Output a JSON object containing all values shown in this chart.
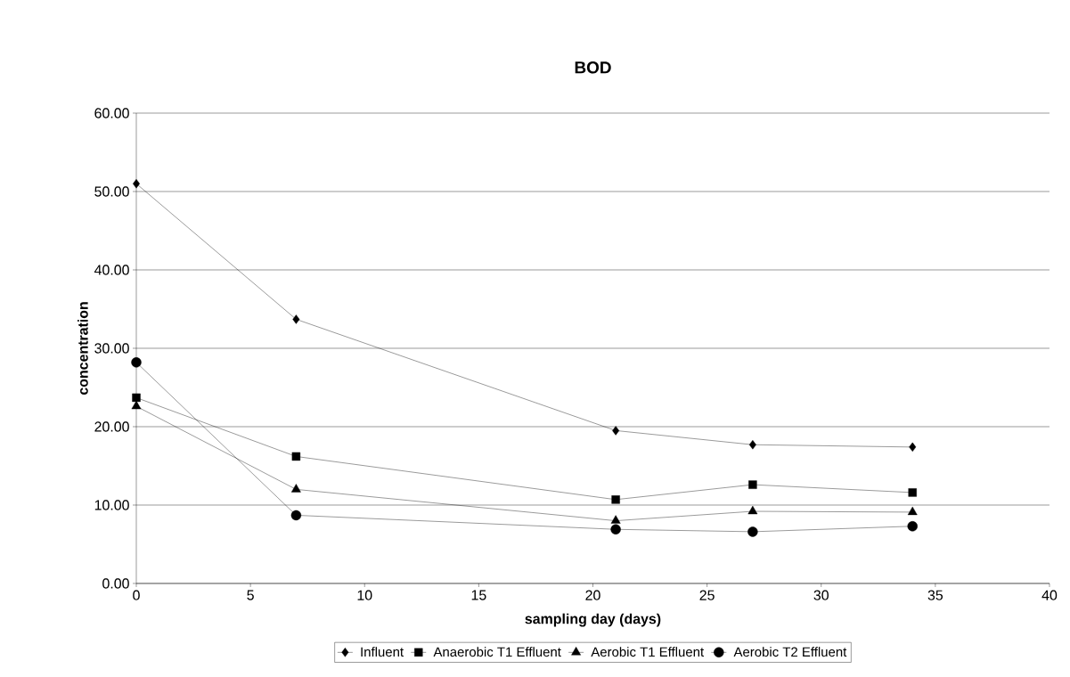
{
  "chart_data": {
    "type": "line",
    "title": "BOD",
    "xlabel": "sampling day (days)",
    "ylabel": "concentration",
    "x": [
      0,
      7,
      21,
      27,
      34
    ],
    "series": [
      {
        "name": "Influent",
        "color": "#000000",
        "marker": "diamond",
        "values": [
          51.0,
          33.7,
          19.5,
          17.7,
          17.4
        ]
      },
      {
        "name": "Anaerobic T1 Effluent",
        "color": "#000000",
        "marker": "square",
        "values": [
          23.7,
          16.2,
          10.7,
          12.6,
          11.6
        ]
      },
      {
        "name": "Aerobic T1 Effluent",
        "color": "#000000",
        "marker": "triangle",
        "values": [
          22.6,
          12.0,
          8.0,
          9.2,
          9.1
        ]
      },
      {
        "name": "Aerobic T2 Effluent",
        "color": "#000000",
        "marker": "circle",
        "values": [
          28.2,
          8.7,
          6.9,
          6.6,
          7.3
        ]
      }
    ],
    "xlim": [
      0,
      40
    ],
    "xticks": [
      0,
      5,
      10,
      15,
      20,
      25,
      30,
      35,
      40
    ],
    "ylim": [
      0,
      60
    ],
    "yticks": [
      {
        "value": 0,
        "label": "0.00"
      },
      {
        "value": 10,
        "label": "10.00"
      },
      {
        "value": 20,
        "label": "20.00"
      },
      {
        "value": 30,
        "label": "30.00"
      },
      {
        "value": 40,
        "label": "40.00"
      },
      {
        "value": 50,
        "label": "50.00"
      },
      {
        "value": 60,
        "label": "60.00"
      }
    ],
    "grid": "y",
    "legend": "bottom",
    "line_style": "solid"
  }
}
